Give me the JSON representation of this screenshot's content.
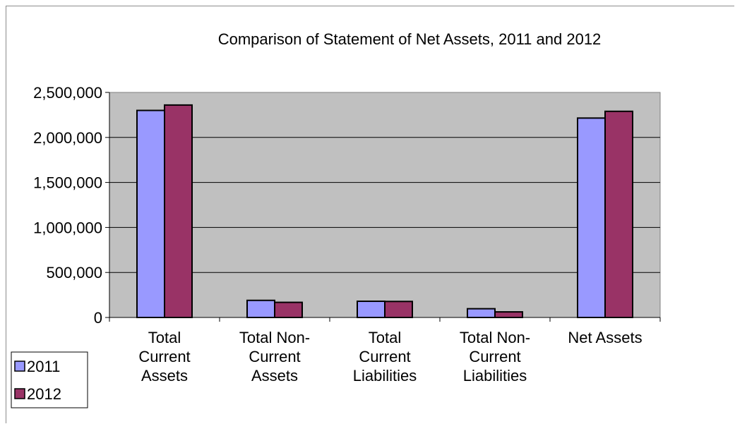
{
  "chart_data": {
    "type": "bar",
    "title": "Comparison of Statement of Net Assets, 2011 and 2012",
    "categories": [
      [
        "Total",
        "Current",
        "Assets"
      ],
      [
        "Total Non-",
        "Current",
        "Assets"
      ],
      [
        "Total",
        "Current",
        "Liabilities"
      ],
      [
        "Total Non-",
        "Current",
        "Liabilities"
      ],
      [
        "Net Assets"
      ]
    ],
    "series": [
      {
        "name": "2011",
        "color": "#9999ff",
        "values": [
          2300000,
          190000,
          180000,
          97000,
          2215000
        ]
      },
      {
        "name": "2012",
        "color": "#993366",
        "values": [
          2360000,
          168000,
          178000,
          62000,
          2290000
        ]
      }
    ],
    "yticks": [
      "0",
      "500,000",
      "1,000,000",
      "1,500,000",
      "2,000,000",
      "2,500,000"
    ],
    "ylim": [
      0,
      2500000
    ],
    "grid": true,
    "plot_background": "#c0c0c0",
    "legend_position": "bottom-left"
  }
}
